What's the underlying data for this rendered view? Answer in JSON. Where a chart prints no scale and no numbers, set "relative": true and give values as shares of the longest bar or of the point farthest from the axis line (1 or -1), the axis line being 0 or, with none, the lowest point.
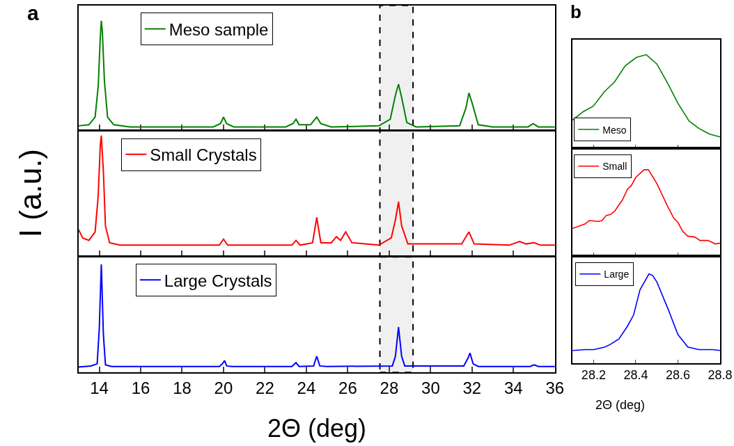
{
  "chart_data": [
    {
      "type": "line",
      "relative": true,
      "annotations": [
        "a"
      ],
      "xlim": [
        13,
        36
      ],
      "xticks": [
        14,
        16,
        18,
        20,
        22,
        24,
        26,
        28,
        30,
        32,
        34,
        36
      ],
      "tick_labels": false,
      "legend": "top left",
      "bands": [
        {
          "axis": "x",
          "from": 27.55,
          "to": 29.15,
          "color": "#f0f0f0"
        }
      ],
      "series": [
        {
          "name": "Meso sample",
          "color": "#008000",
          "x": [
            13.0,
            13.5,
            13.8,
            13.95,
            14.05,
            14.1,
            14.15,
            14.25,
            14.4,
            14.7,
            15.5,
            17,
            19.5,
            19.85,
            20.0,
            20.15,
            20.5,
            23.0,
            23.35,
            23.5,
            23.65,
            24.2,
            24.5,
            24.7,
            25.2,
            27.5,
            28.05,
            28.3,
            28.45,
            28.6,
            28.85,
            29.3,
            31.4,
            31.7,
            31.85,
            32.0,
            32.3,
            33,
            34.7,
            34.95,
            35.2,
            36
          ],
          "values": [
            0.04,
            0.05,
            0.12,
            0.4,
            0.85,
            1.0,
            0.9,
            0.45,
            0.12,
            0.05,
            0.03,
            0.03,
            0.03,
            0.06,
            0.12,
            0.06,
            0.03,
            0.03,
            0.06,
            0.1,
            0.05,
            0.05,
            0.12,
            0.06,
            0.03,
            0.04,
            0.1,
            0.32,
            0.42,
            0.3,
            0.07,
            0.03,
            0.04,
            0.2,
            0.34,
            0.25,
            0.05,
            0.03,
            0.03,
            0.06,
            0.03,
            0.03
          ]
        }
      ]
    },
    {
      "type": "line",
      "relative": true,
      "ylabel": "I (a.u.)",
      "xlim": [
        13,
        36
      ],
      "xticks": [
        14,
        16,
        18,
        20,
        22,
        24,
        26,
        28,
        30,
        32,
        34,
        36
      ],
      "tick_labels": false,
      "legend": "top left",
      "bands": [
        {
          "axis": "x",
          "from": 27.55,
          "to": 29.15,
          "color": "#f0f0f0"
        }
      ],
      "series": [
        {
          "name": "Small Crystals",
          "color": "#ff0000",
          "x": [
            13.0,
            13.2,
            13.5,
            13.8,
            13.95,
            14.05,
            14.1,
            14.2,
            14.3,
            14.5,
            15,
            19.8,
            20.0,
            20.2,
            23.3,
            23.5,
            23.7,
            24.3,
            24.5,
            24.7,
            25.2,
            25.45,
            25.65,
            25.9,
            26.2,
            27.5,
            28.1,
            28.3,
            28.45,
            28.6,
            28.9,
            31.5,
            31.85,
            32.1,
            33.8,
            34.3,
            34.6,
            35.0,
            35.3,
            36
          ],
          "values": [
            0.22,
            0.15,
            0.13,
            0.2,
            0.5,
            0.92,
            1.0,
            0.7,
            0.25,
            0.11,
            0.09,
            0.09,
            0.14,
            0.09,
            0.09,
            0.13,
            0.09,
            0.11,
            0.32,
            0.11,
            0.11,
            0.16,
            0.13,
            0.2,
            0.11,
            0.09,
            0.15,
            0.3,
            0.45,
            0.25,
            0.1,
            0.1,
            0.2,
            0.1,
            0.09,
            0.12,
            0.1,
            0.11,
            0.09,
            0.09
          ]
        }
      ]
    },
    {
      "type": "line",
      "relative": true,
      "xlabel": "2Θ (deg)",
      "xlim": [
        13,
        36
      ],
      "xticks": [
        14,
        16,
        18,
        20,
        22,
        24,
        26,
        28,
        30,
        32,
        34,
        36
      ],
      "tick_labels": "x",
      "legend": "top left",
      "bands": [
        {
          "axis": "x",
          "from": 27.55,
          "to": 29.15,
          "color": "#f0f0f0"
        }
      ],
      "series": [
        {
          "name": "Large Crystals",
          "color": "#0000ff",
          "x": [
            13.0,
            13.6,
            13.9,
            14.0,
            14.1,
            14.2,
            14.3,
            14.6,
            19.8,
            19.95,
            20.05,
            20.15,
            20.4,
            23.3,
            23.5,
            23.65,
            24.35,
            24.5,
            24.65,
            25,
            28.15,
            28.3,
            28.45,
            28.6,
            28.75,
            31.6,
            31.8,
            31.9,
            32.05,
            32.3,
            34.8,
            35.0,
            35.2,
            36
          ],
          "values": [
            0.05,
            0.06,
            0.08,
            0.4,
            1.0,
            0.35,
            0.07,
            0.055,
            0.055,
            0.08,
            0.11,
            0.06,
            0.055,
            0.055,
            0.09,
            0.055,
            0.06,
            0.15,
            0.06,
            0.055,
            0.06,
            0.15,
            0.42,
            0.15,
            0.06,
            0.06,
            0.13,
            0.18,
            0.08,
            0.055,
            0.055,
            0.07,
            0.055,
            0.055
          ]
        }
      ]
    },
    {
      "type": "line",
      "relative": true,
      "annotations": [
        "b"
      ],
      "xlim": [
        28.1,
        28.8
      ],
      "xticks": [
        28.2,
        28.4,
        28.6,
        28.8
      ],
      "tick_labels": false,
      "legend": "bottom left",
      "series": [
        {
          "name": "Meso",
          "color": "#008000",
          "x": [
            28.1,
            28.151,
            28.199,
            28.25,
            28.3,
            28.35,
            28.403,
            28.45,
            28.5,
            28.55,
            28.6,
            28.653,
            28.7,
            28.75,
            28.8
          ],
          "values": [
            0.3,
            0.39,
            0.45,
            0.6,
            0.71,
            0.88,
            0.97,
            1.0,
            0.9,
            0.7,
            0.48,
            0.29,
            0.21,
            0.15,
            0.12
          ]
        }
      ]
    },
    {
      "type": "line",
      "relative": true,
      "xlim": [
        28.1,
        28.8
      ],
      "xticks": [
        28.2,
        28.4,
        28.6,
        28.8
      ],
      "tick_labels": false,
      "legend": "top left",
      "series": [
        {
          "name": "Small",
          "color": "#ff0000",
          "x": [
            28.1,
            28.158,
            28.18,
            28.22,
            28.24,
            28.26,
            28.28,
            28.3,
            28.337,
            28.36,
            28.38,
            28.4,
            28.44,
            28.46,
            28.5,
            28.55,
            28.58,
            28.6,
            28.622,
            28.646,
            28.68,
            28.705,
            28.743,
            28.777,
            28.8
          ],
          "values": [
            0.32,
            0.37,
            0.41,
            0.4,
            0.41,
            0.47,
            0.48,
            0.52,
            0.65,
            0.77,
            0.82,
            0.91,
            1.0,
            1.0,
            0.84,
            0.58,
            0.44,
            0.39,
            0.29,
            0.23,
            0.22,
            0.18,
            0.18,
            0.14,
            0.15
          ]
        }
      ]
    },
    {
      "type": "line",
      "relative": true,
      "xlabel": "2Θ (deg)",
      "xlim": [
        28.1,
        28.8
      ],
      "xticks": [
        28.2,
        28.4,
        28.6,
        28.8
      ],
      "tick_labels": "x",
      "legend": "top left",
      "series": [
        {
          "name": "Large",
          "color": "#0000ff",
          "x": [
            28.1,
            28.158,
            28.2,
            28.254,
            28.28,
            28.32,
            28.36,
            28.39,
            28.42,
            28.463,
            28.48,
            28.5,
            28.556,
            28.6,
            28.647,
            28.7,
            28.766,
            28.8
          ],
          "values": [
            0.14,
            0.15,
            0.15,
            0.18,
            0.21,
            0.27,
            0.41,
            0.54,
            0.82,
            1.0,
            0.98,
            0.91,
            0.59,
            0.32,
            0.18,
            0.15,
            0.15,
            0.14
          ]
        }
      ]
    }
  ]
}
